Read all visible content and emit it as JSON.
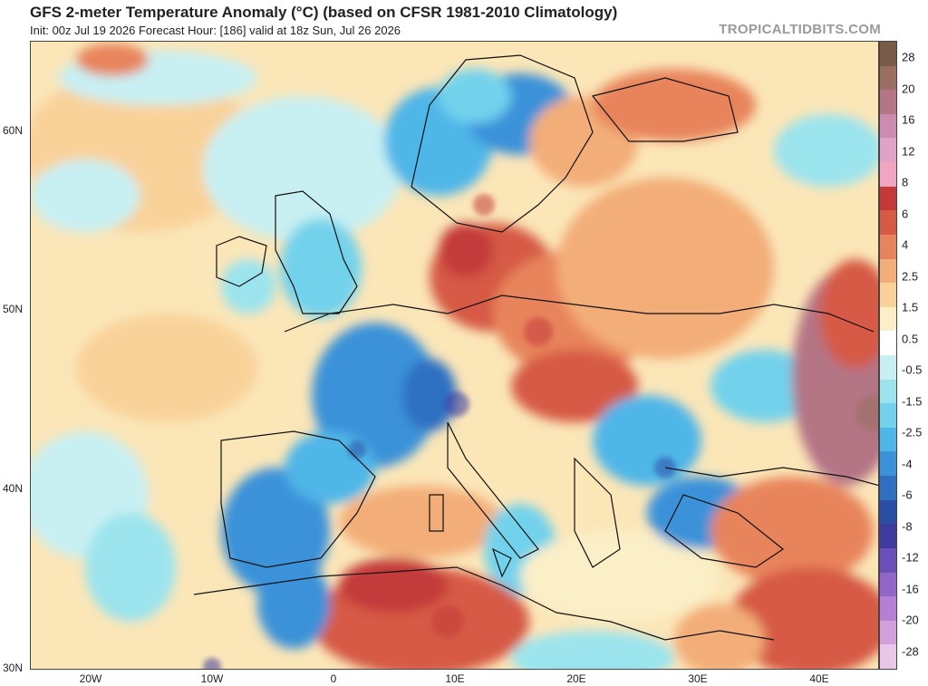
{
  "header": {
    "title": "GFS 2-meter Temperature Anomaly (°C) (based on CFSR 1981-2010 Climatology)",
    "subtitle": "Init: 00z Jul 19 2026   Forecast Hour: [186]   valid at 18z Sun, Jul 26 2026",
    "brand": "TROPICALTIDBITS.COM"
  },
  "axes": {
    "lat_labels": [
      "60N",
      "50N",
      "40N",
      "30N"
    ],
    "lon_labels": [
      "20W",
      "10W",
      "0",
      "10E",
      "20E",
      "30E",
      "40E"
    ]
  },
  "colorbar": {
    "labels": [
      "28",
      "20",
      "16",
      "12",
      "8",
      "6",
      "4",
      "2.5",
      "1.5",
      "0.5",
      "-0.5",
      "-1.5",
      "-2.5",
      "-4",
      "-6",
      "-8",
      "-12",
      "-16",
      "-20",
      "-28"
    ],
    "colors": [
      "#7a5b45",
      "#9a6e60",
      "#b47585",
      "#cc8bb0",
      "#e0a2c6",
      "#f0a6c0",
      "#c43a3a",
      "#d65a44",
      "#e8845c",
      "#f3ad78",
      "#f9d29a",
      "#fbefc7",
      "#ffffff",
      "#c8f0f3",
      "#9be4ee",
      "#72d2ec",
      "#4fb6e8",
      "#3a92d9",
      "#2f6fc2",
      "#2b4fa6",
      "#3d3b9e",
      "#6a4fb8",
      "#9166c8",
      "#b47fd4",
      "#d2a1dc",
      "#e7c6e6"
    ]
  },
  "map_data": {
    "type": "temperature-anomaly-map",
    "region": "Europe, North Africa, Middle East",
    "units": "°C"
  }
}
